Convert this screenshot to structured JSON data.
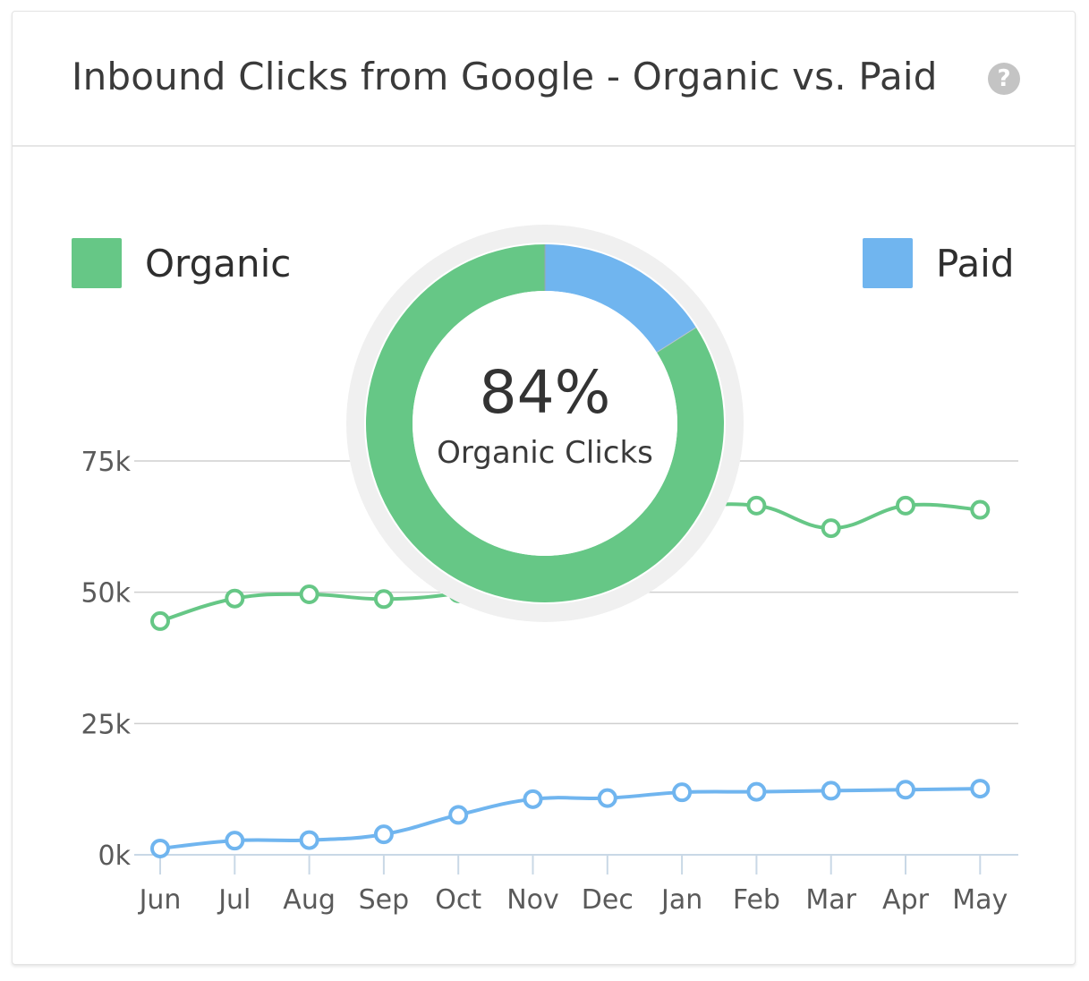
{
  "card": {
    "title": "Inbound Clicks from Google - Organic vs. Paid",
    "help_icon": "question-circle-icon",
    "help_glyph": "?"
  },
  "legend": {
    "organic": {
      "label": "Organic",
      "color": "#66c786"
    },
    "paid": {
      "label": "Paid",
      "color": "#70b5ef"
    }
  },
  "donut": {
    "value_text": "84%",
    "caption": "Organic Clicks",
    "organic_share": 0.84,
    "paid_share": 0.16
  },
  "chart_data": {
    "type": "line",
    "x": [
      "Jun",
      "Jul",
      "Aug",
      "Sep",
      "Oct",
      "Nov",
      "Dec",
      "Jan",
      "Feb",
      "Mar",
      "Apr",
      "May"
    ],
    "y_ticks": [
      0,
      25000,
      50000,
      75000
    ],
    "y_tick_labels": [
      "0k",
      "25k",
      "50k",
      "75k"
    ],
    "ylim": [
      0,
      75000
    ],
    "grid": true,
    "legend_position": "top",
    "series": [
      {
        "name": "Organic",
        "color": "#66c786",
        "values": [
          44500,
          48800,
          49600,
          48700,
          49800,
          52500,
          57000,
          65000,
          66500,
          62200,
          66500,
          65700
        ]
      },
      {
        "name": "Paid",
        "color": "#70b5ef",
        "values": [
          1200,
          2700,
          2800,
          3900,
          7600,
          10600,
          10800,
          11900,
          12000,
          12200,
          12400,
          12600
        ]
      }
    ]
  }
}
